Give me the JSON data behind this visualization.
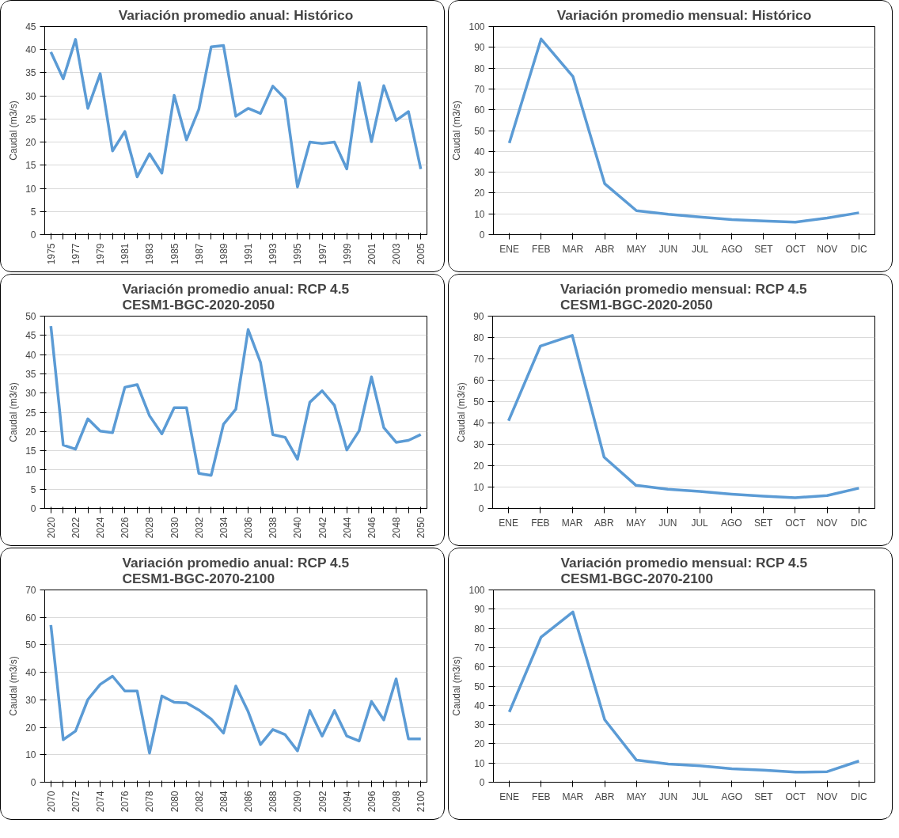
{
  "chart_data": [
    {
      "type": "line",
      "title": "Variación promedio anual: Histórico",
      "ylabel": "Caudal (m3/s)",
      "categories": [
        "1975",
        null,
        "1977",
        null,
        "1979",
        null,
        "1981",
        null,
        "1983",
        null,
        "1985",
        null,
        "1987",
        null,
        "1989",
        null,
        "1991",
        null,
        "1993",
        null,
        "1995",
        null,
        "1997",
        null,
        "1999",
        null,
        "2001",
        null,
        "2003",
        null,
        "2005"
      ],
      "series": [
        {
          "color": "#5b9bd5",
          "values": [
            39.5,
            33.7,
            42.2,
            27.3,
            34.8,
            18.1,
            22.3,
            12.5,
            17.5,
            13.3,
            30.1,
            20.5,
            27.1,
            40.6,
            40.9,
            25.6,
            27.3,
            26.2,
            32.1,
            29.4,
            10.3,
            20,
            19.7,
            20,
            14.2,
            32.9,
            20.1,
            32.2,
            24.7,
            26.6,
            14.2
          ]
        }
      ],
      "ylim": [
        0,
        45
      ],
      "yticks": [
        0,
        5,
        10,
        15,
        20,
        25,
        30,
        35,
        40,
        45
      ],
      "grid": "y",
      "marker": "none",
      "line_style": "solid"
    },
    {
      "type": "line",
      "title": "Variación promedio mensual: Histórico",
      "ylabel": "Caudal (m3/s)",
      "categories": [
        "ENE",
        "FEB",
        "MAR",
        "ABR",
        "MAY",
        "JUN",
        "JUL",
        "AGO",
        "SET",
        "OCT",
        "NOV",
        "DIC"
      ],
      "series": [
        {
          "color": "#5b9bd5",
          "values": [
            44,
            94,
            76,
            24.5,
            11.5,
            9.8,
            8.5,
            7.2,
            6.6,
            6,
            8,
            10.5
          ]
        }
      ],
      "ylim": [
        0,
        100
      ],
      "yticks": [
        0,
        10,
        20,
        30,
        40,
        50,
        60,
        70,
        80,
        90,
        100
      ],
      "grid": "y",
      "marker": "none",
      "line_style": "solid"
    },
    {
      "type": "line",
      "title": "Variación promedio anual: RCP 4.5 CESM1-BGC-2020-2050",
      "ylabel": "Caudal (m3/s)",
      "categories": [
        "2020",
        null,
        "2022",
        null,
        "2024",
        null,
        "2026",
        null,
        "2028",
        null,
        "2030",
        null,
        "2032",
        null,
        "2034",
        null,
        "2036",
        null,
        "2038",
        null,
        "2040",
        null,
        "2042",
        null,
        "2044",
        null,
        "2046",
        null,
        "2048",
        null,
        "2050"
      ],
      "series": [
        {
          "color": "#5b9bd5",
          "values": [
            47.4,
            16.5,
            15.4,
            23.3,
            20.1,
            19.7,
            31.5,
            32.2,
            24.1,
            19.4,
            26.2,
            26.2,
            9.1,
            8.6,
            21.9,
            25.8,
            46.5,
            38,
            19.2,
            18.5,
            12.8,
            27.6,
            30.6,
            26.8,
            15.2,
            20.2,
            34.2,
            21,
            17.2,
            17.7,
            19.2
          ]
        }
      ],
      "ylim": [
        0,
        50
      ],
      "yticks": [
        0,
        5,
        10,
        15,
        20,
        25,
        30,
        35,
        40,
        45,
        50
      ],
      "grid": "y",
      "marker": "none",
      "line_style": "solid"
    },
    {
      "type": "line",
      "title": "Variación promedio mensual: RCP 4.5 CESM1-BGC-2020-2050",
      "ylabel": "Caudal (m3/s)",
      "categories": [
        "ENE",
        "FEB",
        "MAR",
        "ABR",
        "MAY",
        "JUN",
        "JUL",
        "AGO",
        "SET",
        "OCT",
        "NOV",
        "DIC"
      ],
      "series": [
        {
          "color": "#5b9bd5",
          "values": [
            41,
            76,
            81,
            24,
            10.8,
            9,
            8,
            6.7,
            5.7,
            5,
            6,
            9.5
          ]
        }
      ],
      "ylim": [
        0,
        90
      ],
      "yticks": [
        0,
        10,
        20,
        30,
        40,
        50,
        60,
        70,
        80,
        90
      ],
      "grid": "y",
      "marker": "none",
      "line_style": "solid"
    },
    {
      "type": "line",
      "title": "Variación promedio anual: RCP 4.5 CESM1-BGC-2070-2100",
      "ylabel": "Caudal (m3/s)",
      "categories": [
        "2070",
        null,
        "2072",
        null,
        "2074",
        null,
        "2076",
        null,
        "2078",
        null,
        "2080",
        null,
        "2082",
        null,
        "2084",
        null,
        "2086",
        null,
        "2088",
        null,
        "2090",
        null,
        "2092",
        null,
        "2094",
        null,
        "2096",
        null,
        "2098",
        null,
        "2100"
      ],
      "series": [
        {
          "color": "#5b9bd5",
          "values": [
            57.2,
            15.5,
            18.6,
            30.1,
            35.6,
            38.6,
            33.2,
            33.2,
            10.6,
            31.4,
            29.1,
            28.9,
            26.3,
            23,
            17.9,
            35,
            25.7,
            13.7,
            19.2,
            17.3,
            11.4,
            26.1,
            16.8,
            26.1,
            16.8,
            15,
            29.4,
            22.7,
            37.6,
            15.8,
            15.8
          ]
        }
      ],
      "ylim": [
        0,
        70
      ],
      "yticks": [
        0,
        10,
        20,
        30,
        40,
        50,
        60,
        70
      ],
      "grid": "y",
      "marker": "none",
      "line_style": "solid"
    },
    {
      "type": "line",
      "title": "Variación promedio mensual: RCP 4.5 CESM1-BGC-2070-2100",
      "ylabel": "Caudal (m3/s)",
      "categories": [
        "ENE",
        "FEB",
        "MAR",
        "ABR",
        "MAY",
        "JUN",
        "JUL",
        "AGO",
        "SET",
        "OCT",
        "NOV",
        "DIC"
      ],
      "series": [
        {
          "color": "#5b9bd5",
          "values": [
            36.5,
            75.5,
            88.5,
            32.5,
            11.5,
            9.5,
            8.5,
            7,
            6.3,
            5.2,
            5.5,
            11
          ]
        }
      ],
      "ylim": [
        0,
        100
      ],
      "yticks": [
        0,
        10,
        20,
        30,
        40,
        50,
        60,
        70,
        80,
        90,
        100
      ],
      "grid": "y",
      "marker": "none",
      "line_style": "solid"
    }
  ]
}
